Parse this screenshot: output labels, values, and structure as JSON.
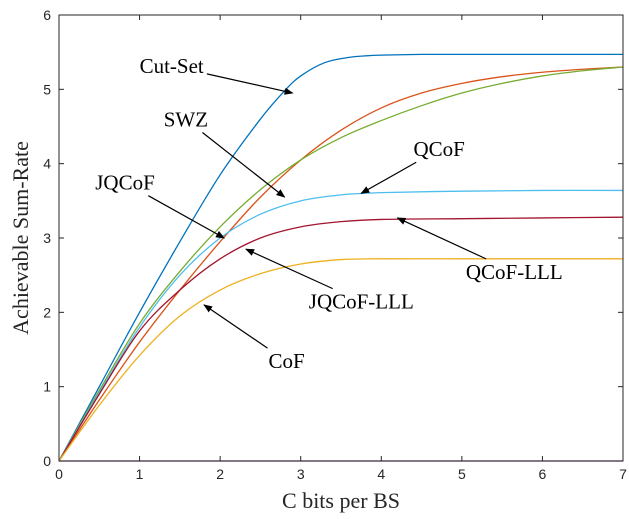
{
  "chart_data": {
    "type": "line",
    "xlabel": "C bits per BS",
    "ylabel": "Achievable Sum-Rate",
    "xlim": [
      0,
      7
    ],
    "ylim": [
      0,
      6
    ],
    "xticks": [
      0,
      1,
      2,
      3,
      4,
      5,
      6,
      7
    ],
    "yticks": [
      0,
      1,
      2,
      3,
      4,
      5,
      6
    ],
    "grid": false,
    "series": [
      {
        "name": "Cut-Set",
        "color": "#0072BD",
        "x": [
          0,
          0.5,
          1,
          1.5,
          2,
          2.5,
          2.8,
          3,
          3.3,
          3.6,
          3.8,
          4,
          4.5,
          5,
          6,
          7
        ],
        "y": [
          0,
          1.0,
          2.0,
          2.95,
          3.85,
          4.6,
          4.98,
          5.18,
          5.36,
          5.43,
          5.45,
          5.46,
          5.47,
          5.47,
          5.47,
          5.47
        ]
      },
      {
        "name": "SWZ",
        "color": "#D95319",
        "x": [
          0,
          0.5,
          1,
          1.5,
          2,
          2.5,
          3,
          3.5,
          4,
          4.5,
          5,
          5.5,
          6,
          6.5,
          7
        ],
        "y": [
          0,
          0.82,
          1.6,
          2.3,
          2.95,
          3.55,
          4.05,
          4.45,
          4.75,
          4.95,
          5.08,
          5.17,
          5.23,
          5.27,
          5.3
        ]
      },
      {
        "name": "JQCoF",
        "color": "#77AC30",
        "x": [
          0,
          0.5,
          1,
          1.5,
          2,
          2.5,
          3,
          3.5,
          4,
          4.5,
          5,
          5.5,
          6,
          6.5,
          7
        ],
        "y": [
          0,
          0.95,
          1.85,
          2.55,
          3.15,
          3.65,
          4.05,
          4.35,
          4.58,
          4.78,
          4.95,
          5.08,
          5.18,
          5.25,
          5.3
        ]
      },
      {
        "name": "QCoF",
        "color": "#4DBEEE",
        "x": [
          0,
          0.5,
          1,
          1.5,
          2,
          2.5,
          3,
          3.5,
          4,
          5,
          6,
          7
        ],
        "y": [
          0,
          0.92,
          1.8,
          2.5,
          3.0,
          3.32,
          3.5,
          3.58,
          3.61,
          3.63,
          3.64,
          3.64
        ]
      },
      {
        "name": "QCoF-LLL",
        "color": "#A2142F",
        "x": [
          0,
          0.5,
          1,
          1.5,
          2,
          2.5,
          3,
          3.5,
          4,
          5,
          6,
          7
        ],
        "y": [
          0,
          0.9,
          1.75,
          2.3,
          2.72,
          3.0,
          3.15,
          3.22,
          3.25,
          3.26,
          3.27,
          3.28
        ]
      },
      {
        "name": "JQCoF-LLL",
        "color": "#7E2F8E",
        "x": [
          0,
          1,
          2,
          3,
          4,
          5,
          6,
          7
        ],
        "y": [
          0,
          0,
          0,
          0,
          0,
          0,
          0,
          0
        ]
      },
      {
        "name": "CoF",
        "color": "#EDB120",
        "x": [
          0,
          0.5,
          1,
          1.5,
          2,
          2.5,
          3,
          3.5,
          4,
          5,
          6,
          7
        ],
        "y": [
          0,
          0.75,
          1.42,
          1.95,
          2.3,
          2.52,
          2.65,
          2.71,
          2.72,
          2.72,
          2.72,
          2.72
        ]
      }
    ],
    "annotations": [
      {
        "text": "Cut-Set",
        "x": 1.0,
        "y": 5.22,
        "arrow_to": [
          2.9,
          4.95
        ]
      },
      {
        "text": "SWZ",
        "x": 1.3,
        "y": 4.5,
        "arrow_to": [
          2.8,
          3.55
        ]
      },
      {
        "text": "JQCoF",
        "x": 0.45,
        "y": 3.65,
        "arrow_to": [
          2.05,
          3.0
        ]
      },
      {
        "text": "QCoF",
        "x": 4.4,
        "y": 4.1,
        "arrow_to": [
          3.75,
          3.6
        ]
      },
      {
        "text": "QCoF-LLL",
        "x": 5.05,
        "y": 2.45,
        "arrow_to": [
          4.2,
          3.27
        ]
      },
      {
        "text": "JQCoF-LLL",
        "x": 3.1,
        "y": 2.05,
        "arrow_to": [
          2.32,
          2.85
        ]
      },
      {
        "text": "CoF",
        "x": 2.6,
        "y": 1.25,
        "arrow_to": [
          1.8,
          2.1
        ]
      }
    ]
  }
}
